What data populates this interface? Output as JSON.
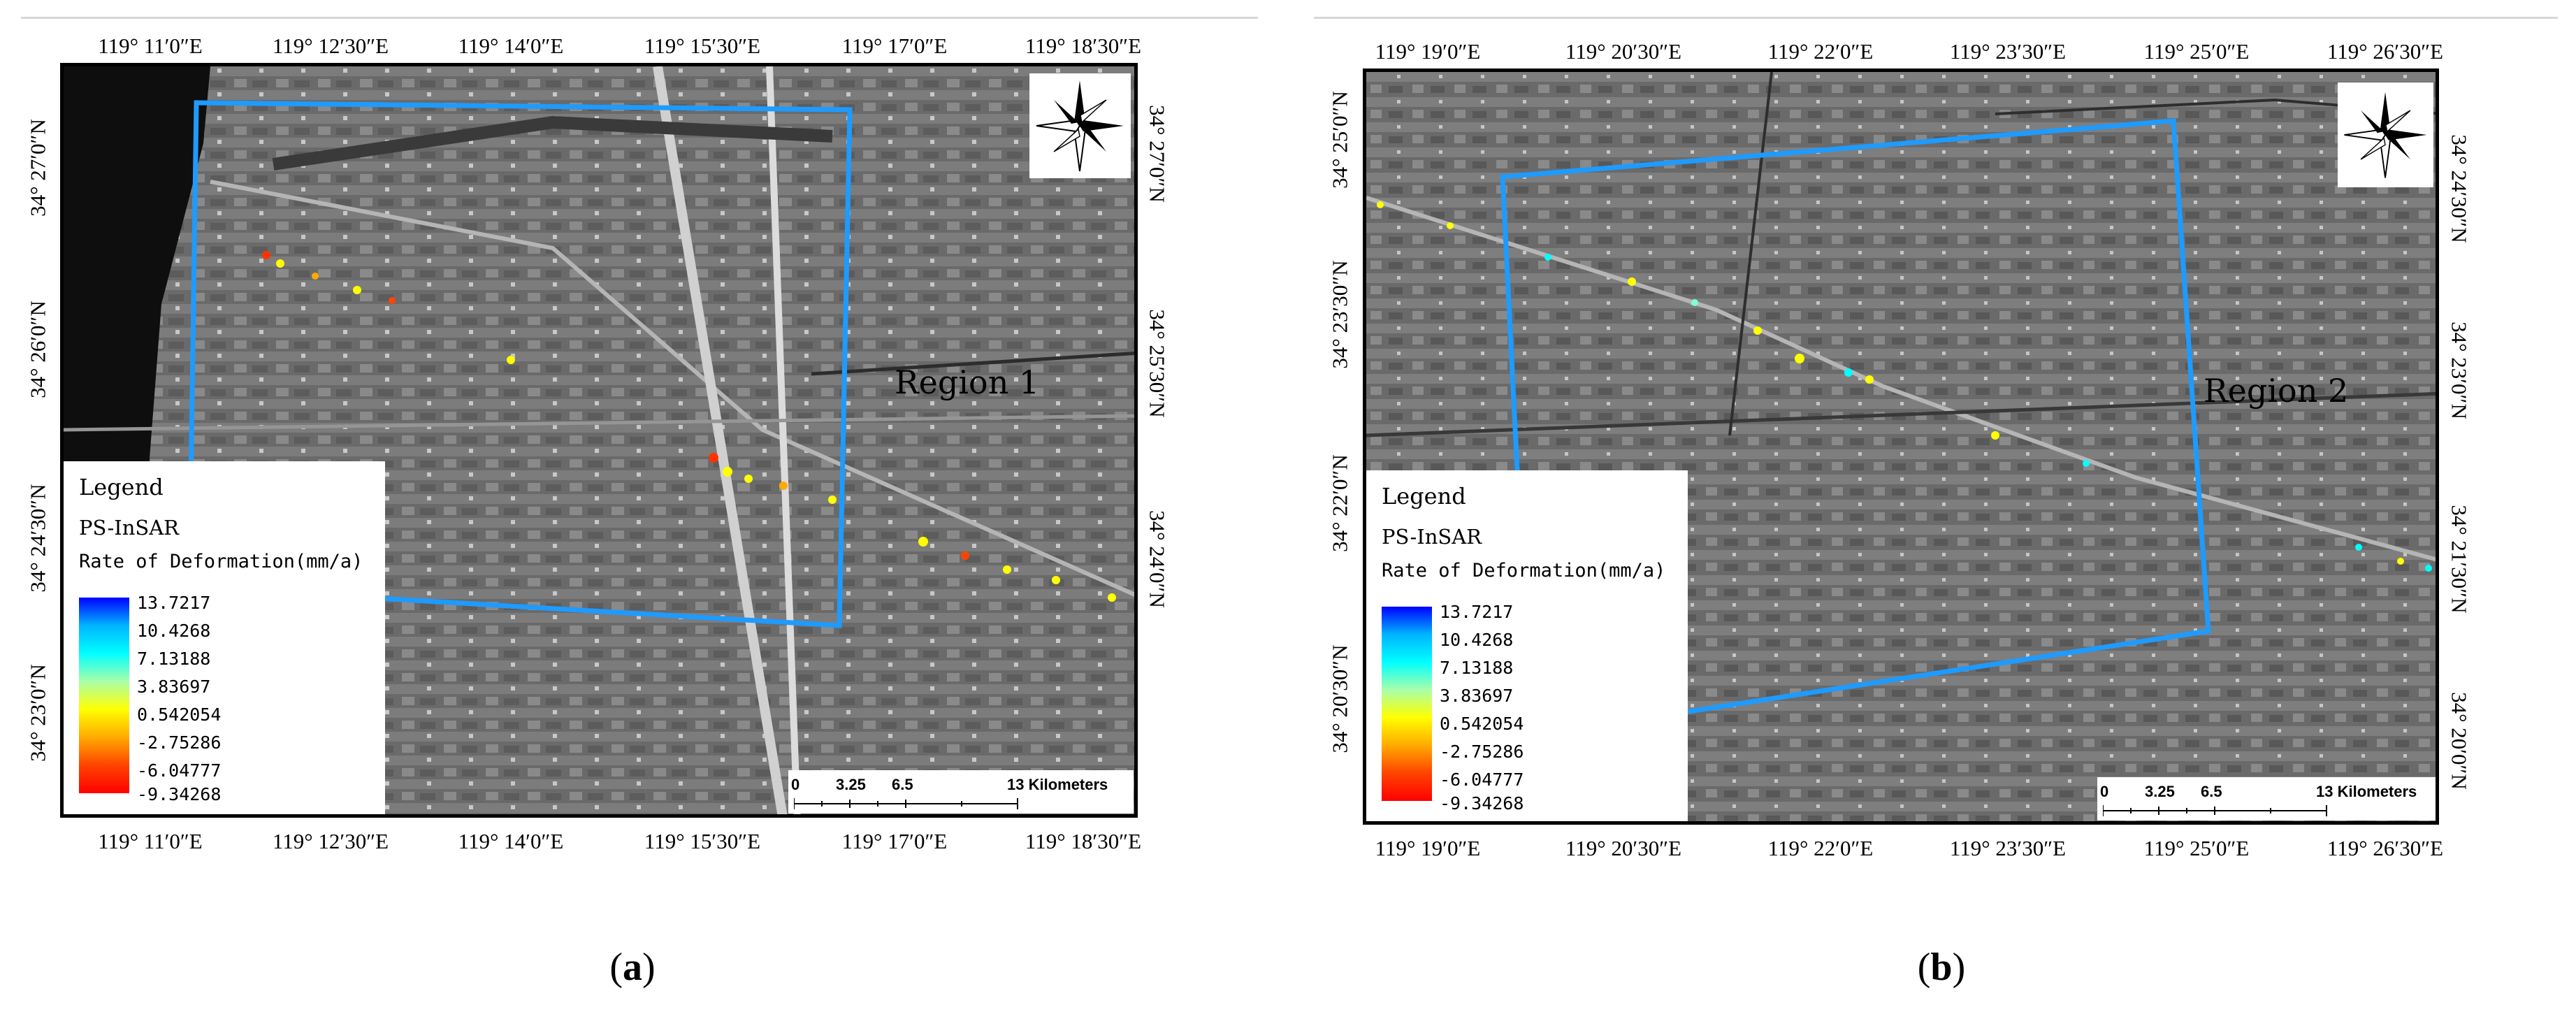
{
  "panels": [
    {
      "id": "a",
      "caption_letter": "a",
      "region_label": "Region 1",
      "top_ticks": [
        "119° 11′0″E",
        "119° 12′30″E",
        "119° 14′0″E",
        "119° 15′30″E",
        "119° 17′0″E",
        "119° 18′30″E"
      ],
      "bottom_ticks": [
        "119° 11′0″E",
        "119° 12′30″E",
        "119° 14′0″E",
        "119° 15′30″E",
        "119° 17′0″E",
        "119° 18′30″E"
      ],
      "left_ticks": [
        "34° 27′0″N",
        "34° 26′0″N",
        "34° 24′30″N",
        "34° 23′0″N"
      ],
      "right_ticks": [
        "34° 27′0″N",
        "34° 25′30″N",
        "34° 24′0″N"
      ],
      "scalebar": {
        "labels": [
          "0",
          "3.25",
          "6.5",
          "13 Kilometers"
        ]
      },
      "compass_icon": "north-arrow-icon"
    },
    {
      "id": "b",
      "caption_letter": "b",
      "region_label": "Region 2",
      "top_ticks": [
        "119° 19′0″E",
        "119° 20′30″E",
        "119° 22′0″E",
        "119° 23′30″E",
        "119° 25′0″E",
        "119° 26′30″E"
      ],
      "bottom_ticks": [
        "119° 19′0″E",
        "119° 20′30″E",
        "119° 22′0″E",
        "119° 23′30″E",
        "119° 25′0″E",
        "119° 26′30″E"
      ],
      "left_ticks": [
        "34° 25′0″N",
        "34° 23′30″N",
        "34° 22′0″N",
        "34° 20′30″N"
      ],
      "right_ticks": [
        "34° 24′30″N",
        "34° 23′0″N",
        "34° 21′30″N",
        "34° 20′0″N"
      ],
      "scalebar": {
        "labels": [
          "0",
          "3.25",
          "6.5",
          "13 Kilometers"
        ]
      },
      "compass_icon": "north-arrow-icon"
    }
  ],
  "legend": {
    "title": "Legend",
    "method": "PS-InSAR",
    "rate_label": "Rate of Deformation(mm/a)",
    "values": [
      "13.7217",
      "10.4268",
      "7.13188",
      "3.83697",
      "0.542054",
      "-2.75286",
      "-6.04777",
      "-9.34268"
    ],
    "colors": [
      "#0000ff",
      "#00b4ff",
      "#00ffff",
      "#7fffd4",
      "#ffff00",
      "#ffaa00",
      "#ff4400",
      "#ff0000"
    ]
  }
}
